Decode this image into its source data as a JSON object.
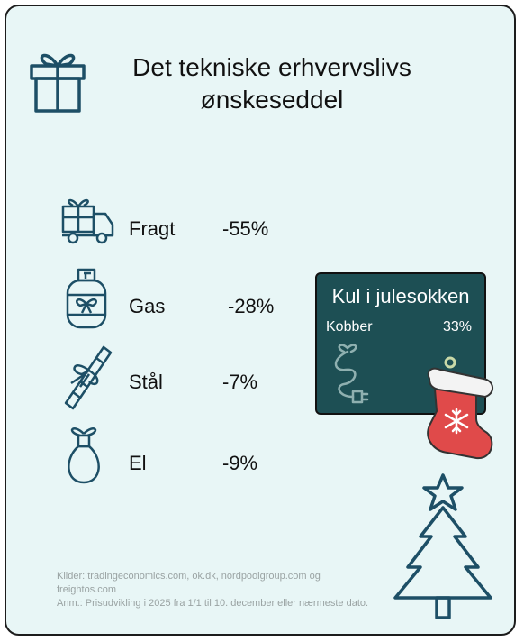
{
  "title": {
    "line1": "Det tekniske erhvervslivs",
    "line2": "ønskeseddel"
  },
  "items": [
    {
      "label": "Fragt",
      "value": "-55%",
      "icon": "truck-with-gift-icon"
    },
    {
      "label": "Gas",
      "value": "-28%",
      "icon": "gas-bottle-icon"
    },
    {
      "label": "Stål",
      "value": "-7%",
      "icon": "candy-cane-icon"
    },
    {
      "label": "El",
      "value": "-9%",
      "icon": "light-bulb-icon"
    }
  ],
  "coal_box": {
    "heading": "Kul i julesokken",
    "metal": "Kobber",
    "value": "33%"
  },
  "footer": {
    "sources": "Kilder: tradingeconomics.com, ok.dk, nordpoolgroup.com og freightos.com",
    "note": "Anm.: Prisudvikling i 2025 fra 1/1 til 10. december eller nærmeste dato."
  },
  "colors": {
    "background": "#e8f6f6",
    "icon_stroke": "#1d4f66",
    "coal_box": "#1d4f54",
    "sock_red": "#e04a4a"
  }
}
